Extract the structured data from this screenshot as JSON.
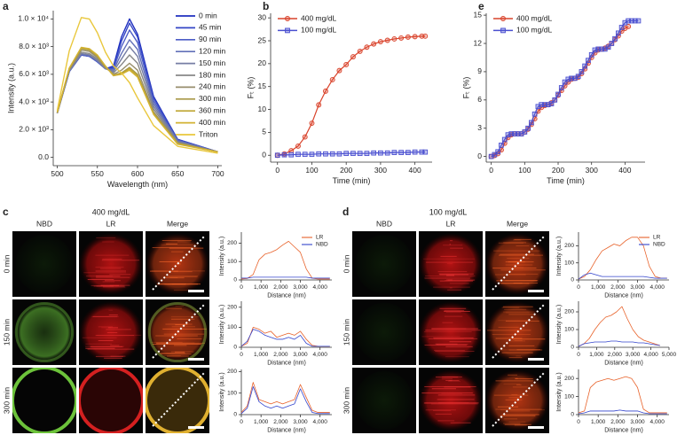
{
  "panels": {
    "c": {
      "letter": "c",
      "title": "400 mg/dL",
      "columns": [
        "NBD",
        "LR",
        "Merge"
      ],
      "rows": [
        "0 min",
        "150 min",
        "300 min"
      ]
    },
    "d": {
      "letter": "d",
      "title": "100 mg/dL",
      "columns": [
        "NBD",
        "LR",
        "Merge"
      ],
      "rows": [
        "0 min",
        "150 min",
        "300 min"
      ]
    }
  },
  "chart_data": [
    {
      "type": "line",
      "panel": "a",
      "xlabel": "Wavelength (nm)",
      "ylabel": "Intensity (a.u.)",
      "x": [
        500,
        515,
        530,
        540,
        550,
        560,
        570,
        580,
        590,
        600,
        620,
        650,
        700
      ],
      "xlim": [
        495,
        705
      ],
      "xticks": [
        500,
        550,
        600,
        650,
        700
      ],
      "ylim": [
        -600,
        10600
      ],
      "yticks": [
        {
          "value": 0,
          "label": "0.0"
        },
        {
          "value": 2000,
          "label": "2.0 × 10³"
        },
        {
          "value": 4000,
          "label": "4.0 × 10³"
        },
        {
          "value": 6000,
          "label": "6.0 × 10³"
        },
        {
          "value": 8000,
          "label": "8.0 × 10³"
        },
        {
          "value": 10000,
          "label": "1.0 × 10⁴"
        }
      ],
      "legend": "upper right",
      "series": [
        {
          "name": "0 min",
          "color": "#1f2fbf",
          "values": [
            3200,
            6200,
            7400,
            7300,
            6900,
            6400,
            6600,
            8700,
            10000,
            8900,
            4400,
            1300,
            400
          ]
        },
        {
          "name": "45 min",
          "color": "#3446c6",
          "values": [
            3200,
            6200,
            7400,
            7300,
            6900,
            6400,
            6500,
            8400,
            9700,
            8700,
            4300,
            1300,
            400
          ]
        },
        {
          "name": "90 min",
          "color": "#4c5cc6",
          "values": [
            3200,
            6200,
            7400,
            7300,
            6900,
            6400,
            6400,
            8000,
            9200,
            8300,
            4100,
            1250,
            400
          ]
        },
        {
          "name": "120 min",
          "color": "#6270b8",
          "values": [
            3200,
            6200,
            7450,
            7350,
            6950,
            6400,
            6300,
            7500,
            8500,
            7800,
            3900,
            1200,
            400
          ]
        },
        {
          "name": "150 min",
          "color": "#767ea4",
          "values": [
            3200,
            6250,
            7500,
            7400,
            7000,
            6400,
            6200,
            7100,
            8000,
            7300,
            3700,
            1150,
            400
          ]
        },
        {
          "name": "180 min",
          "color": "#878787",
          "values": [
            3200,
            6300,
            7600,
            7500,
            7100,
            6450,
            6100,
            6700,
            7400,
            6800,
            3500,
            1100,
            400
          ]
        },
        {
          "name": "240 min",
          "color": "#978e6c",
          "values": [
            3200,
            6350,
            7750,
            7650,
            7200,
            6500,
            6000,
            6300,
            6800,
            6300,
            3300,
            1050,
            400
          ]
        },
        {
          "name": "300 min",
          "color": "#a89846",
          "values": [
            3250,
            6400,
            7850,
            7750,
            7300,
            6550,
            5950,
            6100,
            6500,
            6000,
            3200,
            1000,
            400
          ]
        },
        {
          "name": "360 min",
          "color": "#bfa633",
          "values": [
            3250,
            6450,
            7900,
            7800,
            7350,
            6600,
            5900,
            6050,
            6400,
            5900,
            3150,
            1000,
            400
          ]
        },
        {
          "name": "400 min",
          "color": "#d2b232",
          "values": [
            3250,
            6450,
            7950,
            7850,
            7400,
            6600,
            5900,
            6000,
            6300,
            5800,
            3100,
            950,
            400
          ]
        },
        {
          "name": "Triton",
          "color": "#e9c73c",
          "values": [
            3400,
            7700,
            10100,
            10000,
            9000,
            7600,
            6600,
            6100,
            5400,
            4300,
            2300,
            800,
            300
          ]
        }
      ]
    },
    {
      "type": "line",
      "panel": "b",
      "xlabel": "Time (min)",
      "ylabel": "Fₜ (%)",
      "x": [
        0,
        20,
        40,
        60,
        80,
        100,
        120,
        140,
        160,
        180,
        200,
        220,
        240,
        260,
        280,
        300,
        320,
        340,
        360,
        380,
        400,
        420,
        430
      ],
      "xlim": [
        -20,
        450
      ],
      "xticks": [
        0,
        100,
        200,
        300,
        400
      ],
      "ylim": [
        -1.5,
        31
      ],
      "yticks": [
        0,
        5,
        10,
        15,
        20,
        25,
        30
      ],
      "legend": "upper left",
      "series": [
        {
          "name": "400 mg/dL",
          "color": "#d9432b",
          "marker": "circle",
          "values": [
            0,
            0.3,
            1.0,
            2.0,
            4.0,
            7.0,
            11.0,
            14.0,
            16.5,
            18.5,
            19.8,
            21.5,
            22.7,
            23.6,
            24.3,
            24.8,
            25.1,
            25.4,
            25.6,
            25.8,
            25.9,
            26.0,
            26.0
          ]
        },
        {
          "name": "100 mg/dL",
          "color": "#4a4fd0",
          "marker": "square",
          "values": [
            0,
            0.1,
            0.1,
            0.2,
            0.2,
            0.2,
            0.3,
            0.3,
            0.3,
            0.3,
            0.4,
            0.4,
            0.4,
            0.4,
            0.5,
            0.5,
            0.5,
            0.6,
            0.6,
            0.6,
            0.7,
            0.7,
            0.7
          ]
        }
      ]
    },
    {
      "type": "line",
      "panel": "e",
      "xlabel": "Time (min)",
      "ylabel": "Fₜ (%)",
      "x": [
        0,
        10,
        20,
        30,
        40,
        50,
        60,
        70,
        80,
        90,
        100,
        110,
        120,
        130,
        140,
        150,
        160,
        170,
        180,
        190,
        200,
        210,
        220,
        230,
        240,
        250,
        260,
        270,
        280,
        290,
        300,
        310,
        320,
        330,
        340,
        350,
        360,
        370,
        380,
        390,
        400,
        410,
        420,
        430,
        440
      ],
      "xlim": [
        -15,
        460
      ],
      "xticks": [
        0,
        100,
        200,
        300,
        400
      ],
      "ylim": [
        -0.6,
        15.2
      ],
      "yticks": [
        0,
        3,
        6,
        9,
        12,
        15
      ],
      "legend": "upper left",
      "series": [
        {
          "name": "400 mg/dL",
          "color": "#d9432b",
          "marker": "circle",
          "values": [
            0,
            0.1,
            0.3,
            0.7,
            1.4,
            2.0,
            2.3,
            2.4,
            2.4,
            2.4,
            2.6,
            2.9,
            3.4,
            4.0,
            4.8,
            5.2,
            5.4,
            5.5,
            5.7,
            6.0,
            6.5,
            7.0,
            7.5,
            7.9,
            8.2,
            8.3,
            8.4,
            8.8,
            9.3,
            9.9,
            10.5,
            11.0,
            11.3,
            11.4,
            11.5,
            11.7,
            12.0,
            12.4,
            12.8,
            13.3,
            13.6,
            13.8,
            null,
            null,
            null
          ]
        },
        {
          "name": "100 mg/dL",
          "color": "#4a4fd0",
          "marker": "square",
          "values": [
            0,
            0.2,
            0.5,
            1.2,
            1.8,
            2.3,
            2.4,
            2.4,
            2.4,
            2.4,
            2.6,
            3.0,
            3.6,
            4.5,
            5.3,
            5.5,
            5.5,
            5.5,
            5.6,
            6.0,
            6.6,
            7.3,
            7.9,
            8.2,
            8.3,
            8.3,
            8.5,
            9.0,
            9.6,
            10.2,
            10.8,
            11.3,
            11.4,
            11.4,
            11.4,
            11.6,
            12.0,
            12.5,
            13.1,
            13.7,
            14.2,
            14.4,
            14.4,
            14.4,
            14.4
          ]
        }
      ]
    },
    {
      "type": "line",
      "xlabel": "Distance (nm)",
      "ylabel": "Intensity (a.u.)",
      "x": [
        0,
        300,
        600,
        900,
        1200,
        1500,
        1800,
        2100,
        2400,
        2700,
        3000,
        3300,
        3600,
        3900,
        4200,
        4500
      ],
      "xlim": [
        0,
        4600
      ],
      "xticks": [
        0,
        {
          "value": 1000,
          "label": "1,000"
        },
        {
          "value": 2000,
          "label": "2,000"
        },
        {
          "value": 3000,
          "label": "3,000"
        },
        {
          "value": 4000,
          "label": "4,000"
        }
      ],
      "ylim": [
        0,
        260
      ],
      "yticks": [
        0,
        100,
        200
      ],
      "legend": "upper right",
      "series": [
        {
          "name": "LR",
          "color": "#e8622a",
          "values": [
            5,
            8,
            30,
            110,
            140,
            150,
            165,
            190,
            210,
            180,
            150,
            60,
            10,
            5,
            5,
            5
          ]
        },
        {
          "name": "NBD",
          "color": "#3344cc",
          "values": [
            10,
            10,
            15,
            15,
            15,
            15,
            15,
            15,
            15,
            15,
            15,
            15,
            10,
            10,
            10,
            10
          ]
        }
      ]
    },
    {
      "type": "line",
      "xlabel": "Distance (nm)",
      "ylabel": "Intensity (a.u.)",
      "x": [
        0,
        300,
        600,
        900,
        1200,
        1500,
        1800,
        2100,
        2400,
        2700,
        3000,
        3300,
        3600,
        3900,
        4200,
        4500
      ],
      "xlim": [
        0,
        4600
      ],
      "xticks": [
        0,
        {
          "value": 1000,
          "label": "1,000"
        },
        {
          "value": 2000,
          "label": "2,000"
        },
        {
          "value": 3000,
          "label": "3,000"
        },
        {
          "value": 4000,
          "label": "4,000"
        }
      ],
      "ylim": [
        0,
        230
      ],
      "yticks": [
        0,
        100,
        200
      ],
      "series": [
        {
          "color": "#e8622a",
          "values": [
            5,
            20,
            100,
            90,
            70,
            80,
            50,
            60,
            70,
            60,
            80,
            40,
            10,
            5,
            5,
            5
          ]
        },
        {
          "color": "#3344cc",
          "values": [
            5,
            30,
            90,
            80,
            60,
            50,
            40,
            40,
            50,
            40,
            60,
            20,
            5,
            5,
            5,
            5
          ]
        }
      ]
    },
    {
      "type": "line",
      "xlabel": "Distance (nm)",
      "ylabel": "Intensity (a.u.)",
      "x": [
        0,
        300,
        600,
        900,
        1200,
        1500,
        1800,
        2100,
        2400,
        2700,
        3000,
        3300,
        3600,
        3900,
        4200,
        4500
      ],
      "xlim": [
        0,
        4600
      ],
      "xticks": [
        0,
        {
          "value": 1000,
          "label": "1,000"
        },
        {
          "value": 2000,
          "label": "2,000"
        },
        {
          "value": 3000,
          "label": "3,000"
        },
        {
          "value": 4000,
          "label": "4,000"
        }
      ],
      "ylim": [
        0,
        210
      ],
      "yticks": [
        0,
        100,
        200
      ],
      "series": [
        {
          "color": "#e8622a",
          "values": [
            10,
            40,
            150,
            70,
            60,
            50,
            60,
            50,
            60,
            70,
            140,
            80,
            20,
            10,
            10,
            10
          ]
        },
        {
          "color": "#3344cc",
          "values": [
            5,
            30,
            130,
            60,
            40,
            30,
            40,
            30,
            40,
            50,
            120,
            60,
            10,
            5,
            5,
            5
          ]
        }
      ]
    },
    {
      "type": "line",
      "xlabel": "Distance (nm)",
      "ylabel": "Intensity (a.u.)",
      "x": [
        0,
        300,
        600,
        900,
        1200,
        1500,
        1800,
        2100,
        2400,
        2700,
        3000,
        3300,
        3600,
        3900,
        4200,
        4500
      ],
      "xlim": [
        0,
        4600
      ],
      "xticks": [
        0,
        {
          "value": 1000,
          "label": "1,000"
        },
        {
          "value": 2000,
          "label": "2,000"
        },
        {
          "value": 3000,
          "label": "3,000"
        },
        {
          "value": 4000,
          "label": "4,000"
        }
      ],
      "ylim": [
        0,
        280
      ],
      "yticks": [
        0,
        100,
        200
      ],
      "legend": "upper right",
      "series": [
        {
          "name": "LR",
          "color": "#e8622a",
          "values": [
            5,
            20,
            60,
            120,
            170,
            190,
            210,
            200,
            230,
            250,
            250,
            200,
            80,
            20,
            10,
            10
          ]
        },
        {
          "name": "NBD",
          "color": "#3344cc",
          "values": [
            5,
            30,
            40,
            30,
            20,
            20,
            20,
            20,
            20,
            20,
            20,
            20,
            15,
            10,
            10,
            10
          ]
        }
      ]
    },
    {
      "type": "line",
      "xlabel": "Distance (nm)",
      "ylabel": "Intensity (a.u.)",
      "x": [
        0,
        300,
        600,
        900,
        1200,
        1500,
        1800,
        2100,
        2400,
        2700,
        3000,
        3300,
        3600,
        3900,
        4200,
        4500
      ],
      "xlim": [
        0,
        5000
      ],
      "xticks": [
        0,
        {
          "value": 1000,
          "label": "1,000"
        },
        {
          "value": 2000,
          "label": "2,000"
        },
        {
          "value": 3000,
          "label": "3,000"
        },
        {
          "value": 4000,
          "label": "4,000"
        },
        {
          "value": 5000,
          "label": "5,000"
        }
      ],
      "ylim": [
        0,
        260
      ],
      "yticks": [
        0,
        100,
        200
      ],
      "series": [
        {
          "color": "#e8622a",
          "values": [
            5,
            20,
            50,
            100,
            140,
            170,
            180,
            200,
            230,
            160,
            100,
            60,
            40,
            30,
            20,
            10
          ]
        },
        {
          "color": "#3344cc",
          "values": [
            5,
            20,
            25,
            30,
            30,
            30,
            35,
            35,
            30,
            30,
            30,
            25,
            25,
            20,
            15,
            10
          ]
        }
      ]
    },
    {
      "type": "line",
      "xlabel": "Distance (nm)",
      "ylabel": "Intensity (a.u.)",
      "x": [
        0,
        300,
        600,
        900,
        1200,
        1500,
        1800,
        2100,
        2400,
        2700,
        3000,
        3300,
        3600,
        3900,
        4200,
        4500
      ],
      "xlim": [
        0,
        4600
      ],
      "xticks": [
        0,
        {
          "value": 1000,
          "label": "1,000"
        },
        {
          "value": 2000,
          "label": "2,000"
        },
        {
          "value": 3000,
          "label": "3,000"
        },
        {
          "value": 4000,
          "label": "4,000"
        }
      ],
      "ylim": [
        0,
        250
      ],
      "yticks": [
        0,
        100,
        200
      ],
      "series": [
        {
          "color": "#e8622a",
          "values": [
            10,
            20,
            150,
            180,
            190,
            200,
            190,
            200,
            210,
            200,
            150,
            30,
            10,
            10,
            10,
            10
          ]
        },
        {
          "color": "#3344cc",
          "values": [
            5,
            10,
            20,
            20,
            20,
            20,
            20,
            25,
            20,
            20,
            20,
            10,
            5,
            5,
            5,
            5
          ]
        }
      ]
    }
  ]
}
